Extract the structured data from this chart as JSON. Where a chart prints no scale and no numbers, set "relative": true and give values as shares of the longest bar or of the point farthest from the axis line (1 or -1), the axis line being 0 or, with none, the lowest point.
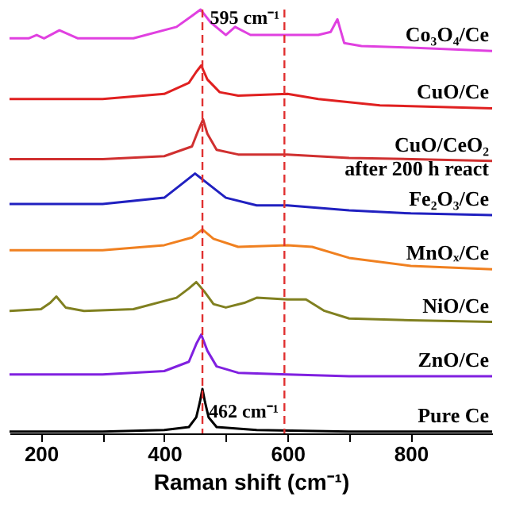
{
  "chart_data": {
    "type": "line",
    "relative": true,
    "xlabel": "Raman shift (cm⁻¹)",
    "xlim": [
      149,
      932
    ],
    "xticks": [
      200,
      {
        "value": 300,
        "label": null
      },
      400,
      {
        "value": 500,
        "label": null
      },
      600,
      {
        "value": 700,
        "label": null
      },
      800
    ],
    "grid": false,
    "line_style": "solid",
    "marker": "none",
    "series": [
      {
        "name": "Co₃O₄/Ce",
        "color": "#e040e0",
        "x": [
          149,
          180,
          193,
          205,
          230,
          260,
          350,
          420,
          445,
          459,
          475,
          500,
          515,
          540,
          595,
          650,
          670,
          681,
          692,
          720,
          800,
          932
        ],
        "values": [
          0.932,
          0.932,
          0.94,
          0.932,
          0.951,
          0.932,
          0.932,
          0.959,
          0.985,
          1.0,
          0.97,
          0.94,
          0.959,
          0.94,
          0.94,
          0.94,
          0.947,
          0.977,
          0.921,
          0.914,
          0.91,
          0.902
        ]
      },
      {
        "name": "CuO/Ce",
        "color": "#e02020",
        "x": [
          149,
          300,
          400,
          440,
          452,
          460,
          470,
          490,
          520,
          600,
          650,
          750,
          932
        ],
        "values": [
          0.789,
          0.789,
          0.801,
          0.827,
          0.853,
          0.868,
          0.835,
          0.805,
          0.797,
          0.801,
          0.789,
          0.774,
          0.767
        ]
      },
      {
        "name": "CuO/CeO₂\nafter 200 h react",
        "color": "#d03030",
        "x": [
          149,
          300,
          400,
          445,
          455,
          463,
          470,
          485,
          520,
          600,
          700,
          932
        ],
        "values": [
          0.647,
          0.647,
          0.654,
          0.677,
          0.714,
          0.741,
          0.707,
          0.669,
          0.658,
          0.658,
          0.65,
          0.643
        ]
      },
      {
        "name": "Fe₂O₃/Ce",
        "color": "#2020c0",
        "x": [
          149,
          300,
          400,
          430,
          450,
          470,
          500,
          550,
          600,
          700,
          800,
          932
        ],
        "values": [
          0.541,
          0.541,
          0.556,
          0.59,
          0.613,
          0.59,
          0.556,
          0.538,
          0.538,
          0.526,
          0.519,
          0.515
        ]
      },
      {
        "name": "MnOₓ/Ce",
        "color": "#f08020",
        "x": [
          149,
          300,
          400,
          445,
          462,
          480,
          520,
          600,
          640,
          700,
          800,
          932
        ],
        "values": [
          0.432,
          0.432,
          0.444,
          0.462,
          0.481,
          0.459,
          0.44,
          0.444,
          0.44,
          0.414,
          0.395,
          0.387
        ]
      },
      {
        "name": "NiO/Ce",
        "color": "#808020",
        "x": [
          149,
          200,
          215,
          225,
          240,
          270,
          350,
          420,
          440,
          452,
          465,
          480,
          500,
          530,
          550,
          600,
          630,
          660,
          700,
          800,
          932
        ],
        "values": [
          0.289,
          0.293,
          0.308,
          0.323,
          0.297,
          0.289,
          0.293,
          0.32,
          0.342,
          0.357,
          0.335,
          0.305,
          0.297,
          0.308,
          0.32,
          0.316,
          0.316,
          0.289,
          0.271,
          0.267,
          0.263
        ]
      },
      {
        "name": "ZnO/Ce",
        "color": "#8020e0",
        "x": [
          149,
          300,
          400,
          440,
          452,
          460,
          470,
          485,
          520,
          600,
          700,
          932
        ],
        "values": [
          0.139,
          0.139,
          0.147,
          0.169,
          0.211,
          0.233,
          0.195,
          0.158,
          0.143,
          0.139,
          0.135,
          0.135
        ]
      },
      {
        "name": "Pure Ce",
        "color": "#000000",
        "x": [
          149,
          300,
          400,
          440,
          452,
          458,
          462,
          466,
          472,
          485,
          550,
          700,
          932
        ],
        "values": [
          0.004,
          0.004,
          0.008,
          0.015,
          0.038,
          0.075,
          0.105,
          0.075,
          0.038,
          0.015,
          0.008,
          0.004,
          0.004
        ]
      }
    ],
    "ref_lines": [
      {
        "axis": "x",
        "value": 462,
        "label": "462 cm⁻¹",
        "color": "#e03030",
        "line_style": "dashed"
      },
      {
        "axis": "x",
        "value": 595,
        "label": "595 cm⁻¹",
        "color": "#e03030",
        "line_style": "dashed"
      }
    ]
  }
}
